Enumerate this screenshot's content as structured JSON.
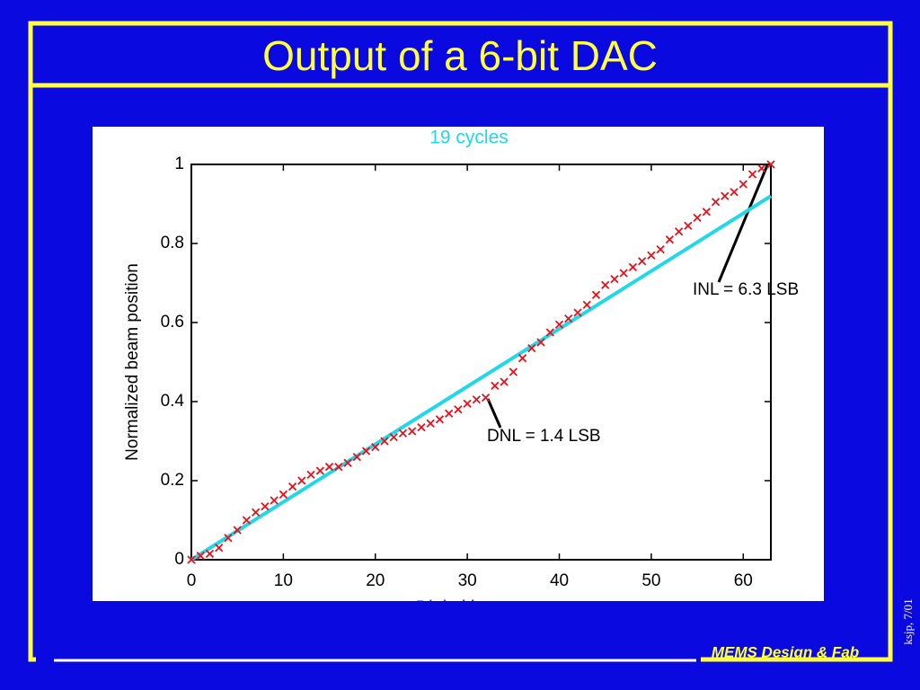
{
  "title": "Output of a 6-bit DAC",
  "footer": "MEMS Design & Fab",
  "side_note": "ksjp, 7/01",
  "chart_data": {
    "type": "scatter",
    "title": "19 cycles",
    "x_label": "Digital input",
    "y_label": "Normalized beam position",
    "xlim": [
      0,
      63
    ],
    "ylim": [
      0,
      1
    ],
    "xticks": [
      0,
      10,
      20,
      30,
      40,
      50,
      60
    ],
    "yticks": [
      0,
      {
        "value": 0.2,
        "label": "0.2"
      },
      {
        "value": 0.4,
        "label": "0.4"
      },
      {
        "value": 0.6,
        "label": "0.6"
      },
      {
        "value": 0.8,
        "label": "0.8"
      },
      1
    ],
    "series": [
      {
        "color": "#e8101a",
        "marker": "x",
        "x": [
          0,
          1,
          2,
          3,
          4,
          5,
          6,
          7,
          8,
          9,
          10,
          11,
          12,
          13,
          14,
          15,
          16,
          17,
          18,
          19,
          20,
          21,
          22,
          23,
          24,
          25,
          26,
          27,
          28,
          29,
          30,
          31,
          32,
          33,
          34,
          35,
          36,
          37,
          38,
          39,
          40,
          41,
          42,
          43,
          44,
          45,
          46,
          47,
          48,
          49,
          50,
          51,
          52,
          53,
          54,
          55,
          56,
          57,
          58,
          59,
          60,
          61,
          62,
          63
        ],
        "values": [
          0,
          0.01,
          0.015,
          0.03,
          0.055,
          0.075,
          0.1,
          0.12,
          0.135,
          0.15,
          0.165,
          0.185,
          0.2,
          0.215,
          0.225,
          0.235,
          0.235,
          0.245,
          0.26,
          0.275,
          0.285,
          0.3,
          0.31,
          0.32,
          0.325,
          0.335,
          0.345,
          0.355,
          0.37,
          0.38,
          0.395,
          0.405,
          0.41,
          0.44,
          0.45,
          0.475,
          0.51,
          0.535,
          0.55,
          0.575,
          0.595,
          0.61,
          0.625,
          0.645,
          0.67,
          0.695,
          0.71,
          0.725,
          0.74,
          0.755,
          0.77,
          0.785,
          0.81,
          0.83,
          0.845,
          0.865,
          0.88,
          0.905,
          0.92,
          0.93,
          0.95,
          0.975,
          0.99,
          1
        ]
      },
      {
        "color": "#20d8e8",
        "marker": "line",
        "x": [
          0,
          63
        ],
        "values": [
          0,
          0.92
        ]
      }
    ],
    "annotations": [
      "INL = 6.3 LSB",
      "DNL = 1.4 LSB"
    ]
  }
}
